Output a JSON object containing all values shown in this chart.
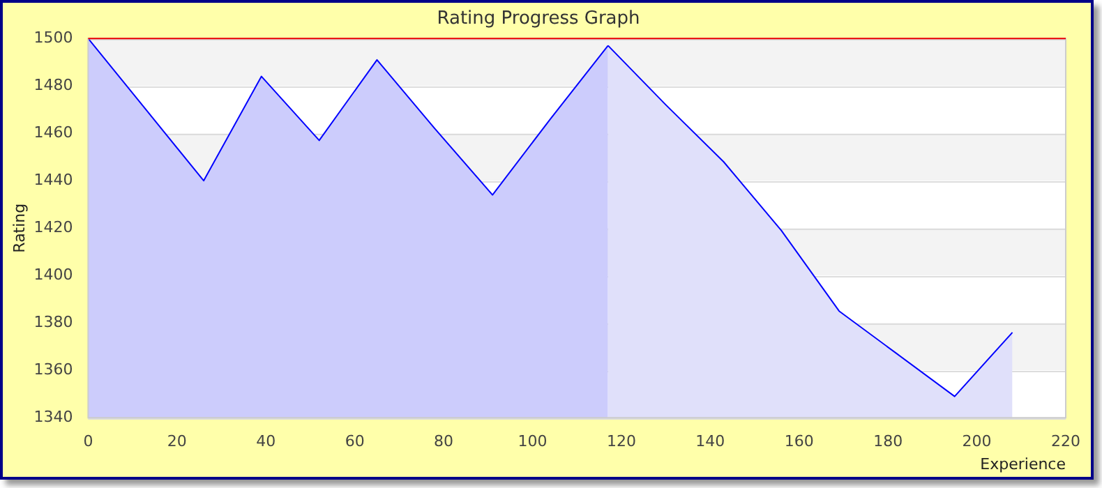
{
  "chart_data": {
    "type": "area",
    "title": "Rating Progress Graph",
    "xlabel": "Experience",
    "ylabel": "Rating",
    "series": [
      {
        "color": "#ccccfc",
        "x": [
          0,
          13,
          26,
          39,
          52,
          65,
          78,
          91,
          104,
          117
        ],
        "values": [
          1500,
          1470,
          1440,
          1484,
          1457,
          1491,
          1462,
          1434,
          1466,
          1497
        ]
      },
      {
        "color": "#e0e0fa",
        "x": [
          117,
          130,
          143,
          156,
          169,
          182,
          195,
          208
        ],
        "values": [
          1497,
          1472,
          1448,
          1419,
          1385,
          1367,
          1349,
          1376
        ]
      }
    ],
    "xlim": [
      0,
      220
    ],
    "xticks": [
      0,
      20,
      40,
      60,
      80,
      100,
      120,
      140,
      160,
      180,
      200,
      220
    ],
    "ylim": [
      1340,
      1500
    ],
    "yticks": [
      1340,
      1360,
      1380,
      1400,
      1420,
      1440,
      1460,
      1480,
      1500
    ],
    "ref_lines": [
      {
        "axis": "y",
        "value": 1500,
        "color": "#ee0000"
      }
    ],
    "grid": "y",
    "legend": false,
    "marker": "none",
    "line_style": "solid"
  }
}
